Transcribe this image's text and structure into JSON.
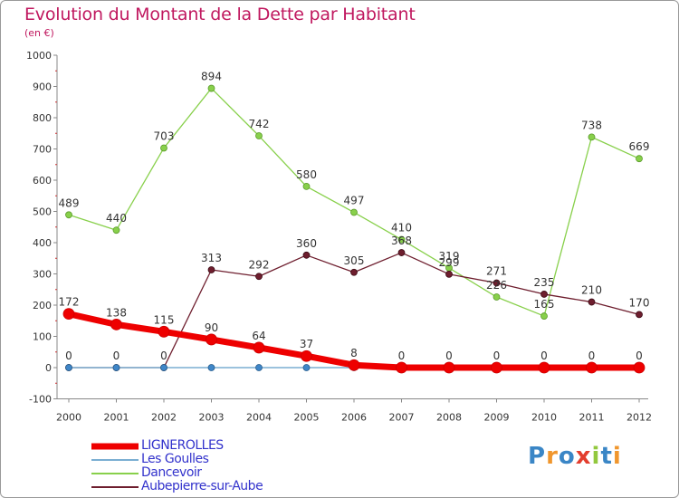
{
  "title": "Evolution du Montant de la Dette par Habitant",
  "subtitle": "(en €)",
  "chart_data": {
    "type": "line",
    "title": "Evolution du Montant de la Dette par Habitant",
    "subtitle": "(en €)",
    "x": [
      "2000",
      "2001",
      "2002",
      "2003",
      "2004",
      "2005",
      "2006",
      "2007",
      "2008",
      "2009",
      "2010",
      "2011",
      "2012"
    ],
    "ylim": [
      -100,
      1000
    ],
    "yticks": [
      -100,
      0,
      100,
      200,
      300,
      400,
      500,
      600,
      700,
      800,
      900,
      1000
    ],
    "grid": false,
    "legend_position": "bottom-left",
    "series": [
      {
        "name": "LIGNEROLLES",
        "color": "#ee0000",
        "values": [
          172,
          138,
          115,
          90,
          64,
          37,
          8,
          0,
          0,
          0,
          0,
          0,
          0
        ]
      },
      {
        "name": "Les Goulles",
        "color": "#7aaed2",
        "values": [
          0,
          0,
          0,
          0,
          0,
          0,
          0,
          0,
          0,
          0,
          0,
          0,
          0
        ]
      },
      {
        "name": "Dancevoir",
        "color": "#88d04b",
        "values": [
          489,
          440,
          703,
          894,
          742,
          580,
          497,
          410,
          319,
          226,
          165,
          738,
          669
        ]
      },
      {
        "name": "Aubepierre-sur-Aube",
        "color": "#6e1e2e",
        "values": [
          0,
          0,
          0,
          313,
          292,
          360,
          305,
          368,
          299,
          271,
          235,
          210,
          170
        ]
      }
    ]
  },
  "logo": {
    "text": "Proxiti",
    "colors": [
      "#3a86c6",
      "#f0962d",
      "#3a86c6",
      "#e33e2e",
      "#92c83e",
      "#3a86c6",
      "#f0962d"
    ]
  }
}
